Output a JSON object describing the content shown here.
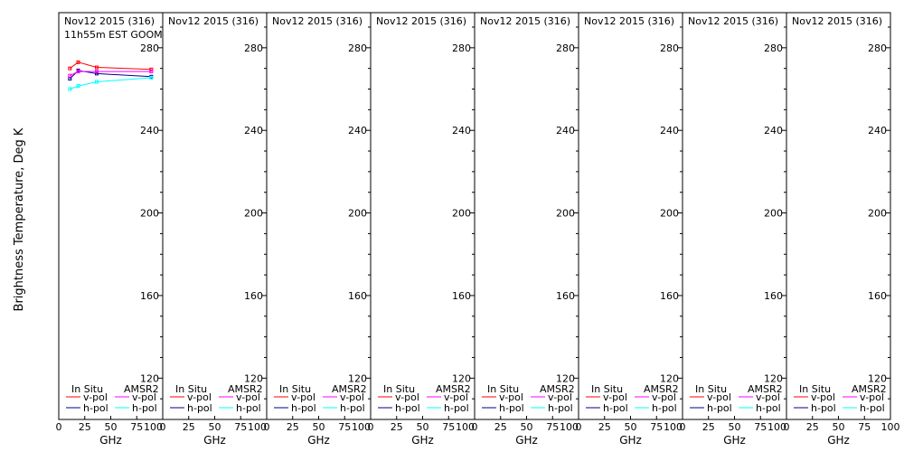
{
  "ylabel": "Brightness Temperature, Deg K",
  "colors": {
    "insitu_v": "#ff0000",
    "insitu_h": "#00008b",
    "amsr2_v": "#ff00ff",
    "amsr2_h": "#00ffff"
  },
  "chart_data": [
    {
      "type": "line",
      "title": "Nov12 2015 (316)",
      "subtitle": "11h55m EST GOOM",
      "xlabel": "GHz",
      "xlim": [
        0,
        100
      ],
      "ylim": [
        100,
        297
      ],
      "xticks": [
        0,
        25,
        50,
        75,
        100
      ],
      "yticks": [
        120,
        160,
        200,
        240,
        280
      ],
      "legend": {
        "group1": "In Situ",
        "group2": "AMSR2",
        "v": "v-pol",
        "h": "h-pol"
      },
      "series": [
        {
          "name": "v-pol",
          "group": "In Situ",
          "color": "#ff0000",
          "x": [
            10.7,
            18.7,
            36.5,
            89
          ],
          "y": [
            270,
            273,
            270.5,
            269.5
          ]
        },
        {
          "name": "h-pol",
          "group": "In Situ",
          "color": "#00008b",
          "x": [
            10.7,
            18.7,
            36.5,
            89
          ],
          "y": [
            265,
            269,
            267.5,
            266
          ]
        },
        {
          "name": "v-pol",
          "group": "AMSR2",
          "color": "#ff00ff",
          "x": [
            10.7,
            18.7,
            36.5,
            89
          ],
          "y": [
            266.5,
            268.5,
            268.5,
            268.5
          ]
        },
        {
          "name": "h-pol",
          "group": "AMSR2",
          "color": "#00ffff",
          "x": [
            10.7,
            18.7,
            36.5,
            89
          ],
          "y": [
            260,
            261.5,
            263.5,
            265.5
          ]
        }
      ]
    },
    {
      "type": "line",
      "title": "Nov12 2015 (316)",
      "xlabel": "GHz",
      "xlim": [
        0,
        100
      ],
      "ylim": [
        100,
        297
      ],
      "xticks": [
        0,
        25,
        50,
        75,
        100
      ],
      "yticks": [
        120,
        160,
        200,
        240,
        280
      ],
      "legend": {
        "group1": "In Situ",
        "group2": "AMSR2",
        "v": "v-pol",
        "h": "h-pol"
      },
      "series": []
    },
    {
      "type": "line",
      "title": "Nov12 2015 (316)",
      "xlabel": "GHz",
      "xlim": [
        0,
        100
      ],
      "ylim": [
        100,
        297
      ],
      "xticks": [
        0,
        25,
        50,
        75,
        100
      ],
      "yticks": [
        120,
        160,
        200,
        240,
        280
      ],
      "legend": {
        "group1": "In Situ",
        "group2": "AMSR2",
        "v": "v-pol",
        "h": "h-pol"
      },
      "series": []
    },
    {
      "type": "line",
      "title": "Nov12 2015 (316)",
      "xlabel": "GHz",
      "xlim": [
        0,
        100
      ],
      "ylim": [
        100,
        297
      ],
      "xticks": [
        0,
        25,
        50,
        75,
        100
      ],
      "yticks": [
        120,
        160,
        200,
        240,
        280
      ],
      "legend": {
        "group1": "In Situ",
        "group2": "AMSR2",
        "v": "v-pol",
        "h": "h-pol"
      },
      "series": []
    },
    {
      "type": "line",
      "title": "Nov12 2015 (316)",
      "xlabel": "GHz",
      "xlim": [
        0,
        100
      ],
      "ylim": [
        100,
        297
      ],
      "xticks": [
        0,
        25,
        50,
        75,
        100
      ],
      "yticks": [
        120,
        160,
        200,
        240,
        280
      ],
      "legend": {
        "group1": "In Situ",
        "group2": "AMSR2",
        "v": "v-pol",
        "h": "h-pol"
      },
      "series": []
    },
    {
      "type": "line",
      "title": "Nov12 2015 (316)",
      "xlabel": "GHz",
      "xlim": [
        0,
        100
      ],
      "ylim": [
        100,
        297
      ],
      "xticks": [
        0,
        25,
        50,
        75,
        100
      ],
      "yticks": [
        120,
        160,
        200,
        240,
        280
      ],
      "legend": {
        "group1": "In Situ",
        "group2": "AMSR2",
        "v": "v-pol",
        "h": "h-pol"
      },
      "series": []
    },
    {
      "type": "line",
      "title": "Nov12 2015 (316)",
      "xlabel": "GHz",
      "xlim": [
        0,
        100
      ],
      "ylim": [
        100,
        297
      ],
      "xticks": [
        0,
        25,
        50,
        75,
        100
      ],
      "yticks": [
        120,
        160,
        200,
        240,
        280
      ],
      "legend": {
        "group1": "In Situ",
        "group2": "AMSR2",
        "v": "v-pol",
        "h": "h-pol"
      },
      "series": []
    },
    {
      "type": "line",
      "title": "Nov12 2015 (316)",
      "xlabel": "GHz",
      "xlim": [
        0,
        100
      ],
      "ylim": [
        100,
        297
      ],
      "xticks": [
        0,
        25,
        50,
        75,
        100
      ],
      "yticks": [
        120,
        160,
        200,
        240,
        280
      ],
      "legend": {
        "group1": "In Situ",
        "group2": "AMSR2",
        "v": "v-pol",
        "h": "h-pol"
      },
      "series": []
    }
  ]
}
